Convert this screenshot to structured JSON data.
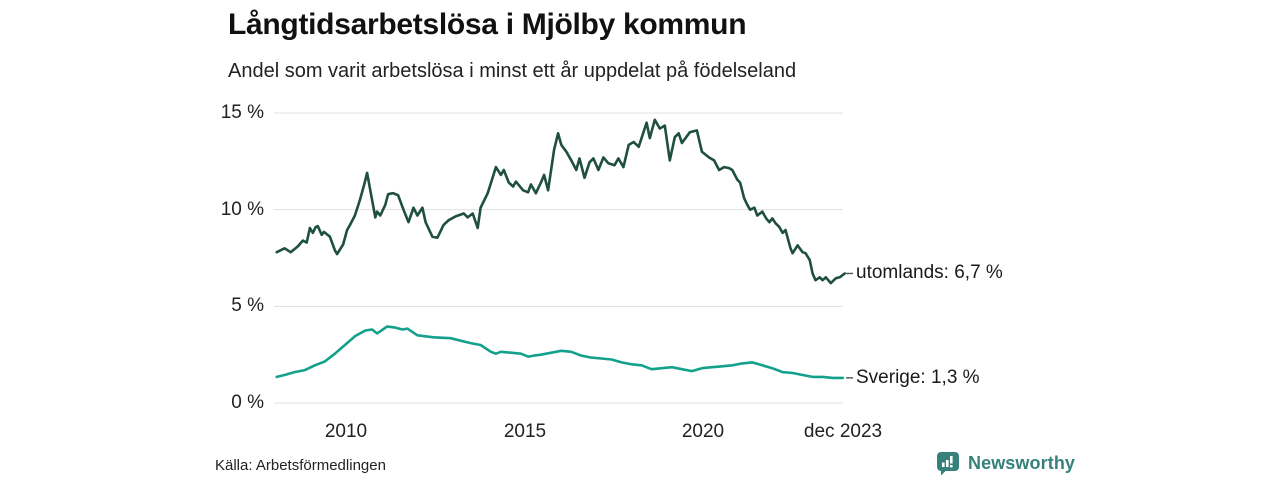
{
  "chart_data": {
    "type": "line",
    "title": "Långtidsarbetslösa i Mjölby kommun",
    "subtitle": "Andel som varit arbetslösa i minst ett år uppdelat på födelseland",
    "source": "Källa: Arbetsförmedlingen",
    "grid": true,
    "legend_position": "labels-at-line-ends",
    "x_axis": {
      "range": [
        2008.0,
        2024.2
      ],
      "ticks": [
        {
          "value": 2010,
          "label": "2010"
        },
        {
          "value": 2015,
          "label": "2015"
        },
        {
          "value": 2020,
          "label": "2020"
        },
        {
          "value": 2023.92,
          "label": "dec 2023"
        }
      ]
    },
    "y_axis": {
      "range": [
        0,
        15
      ],
      "unit": "%",
      "ticks": [
        {
          "value": 15,
          "label": "15 %"
        },
        {
          "value": 10,
          "label": "10 %"
        },
        {
          "value": 5,
          "label": "5 %"
        },
        {
          "value": 0,
          "label": "0 %"
        }
      ]
    },
    "series": [
      {
        "name": "utomlands",
        "end_label": "utomlands: 6,7 %",
        "last_value": 6.7,
        "color": "#1f4f3f",
        "points": [
          [
            2008.06,
            7.8
          ],
          [
            2008.28,
            8.0
          ],
          [
            2008.45,
            7.8
          ],
          [
            2008.65,
            8.1
          ],
          [
            2008.79,
            8.4
          ],
          [
            2008.9,
            8.3
          ],
          [
            2008.99,
            9.05
          ],
          [
            2009.07,
            8.8
          ],
          [
            2009.15,
            9.1
          ],
          [
            2009.21,
            9.15
          ],
          [
            2009.32,
            8.7
          ],
          [
            2009.38,
            8.85
          ],
          [
            2009.55,
            8.6
          ],
          [
            2009.69,
            7.9
          ],
          [
            2009.75,
            7.7
          ],
          [
            2009.92,
            8.2
          ],
          [
            2010.03,
            8.95
          ],
          [
            2010.11,
            9.2
          ],
          [
            2010.25,
            9.7
          ],
          [
            2010.39,
            10.5
          ],
          [
            2010.51,
            11.3
          ],
          [
            2010.59,
            11.9
          ],
          [
            2010.68,
            11.0
          ],
          [
            2010.82,
            9.6
          ],
          [
            2010.87,
            9.9
          ],
          [
            2010.96,
            9.7
          ],
          [
            2011.1,
            10.25
          ],
          [
            2011.18,
            10.8
          ],
          [
            2011.32,
            10.85
          ],
          [
            2011.46,
            10.75
          ],
          [
            2011.61,
            10.0
          ],
          [
            2011.75,
            9.35
          ],
          [
            2011.89,
            10.1
          ],
          [
            2012.0,
            9.7
          ],
          [
            2012.14,
            10.1
          ],
          [
            2012.23,
            9.35
          ],
          [
            2012.42,
            8.6
          ],
          [
            2012.56,
            8.55
          ],
          [
            2012.73,
            9.2
          ],
          [
            2012.87,
            9.45
          ],
          [
            2013.07,
            9.65
          ],
          [
            2013.3,
            9.8
          ],
          [
            2013.41,
            9.6
          ],
          [
            2013.55,
            9.8
          ],
          [
            2013.69,
            9.05
          ],
          [
            2013.77,
            10.1
          ],
          [
            2013.97,
            10.85
          ],
          [
            2014.2,
            12.2
          ],
          [
            2014.34,
            11.8
          ],
          [
            2014.42,
            12.05
          ],
          [
            2014.56,
            11.4
          ],
          [
            2014.68,
            11.2
          ],
          [
            2014.76,
            11.45
          ],
          [
            2014.96,
            11.0
          ],
          [
            2015.1,
            10.9
          ],
          [
            2015.18,
            11.3
          ],
          [
            2015.32,
            10.85
          ],
          [
            2015.46,
            11.4
          ],
          [
            2015.55,
            11.8
          ],
          [
            2015.66,
            11.0
          ],
          [
            2015.83,
            13.1
          ],
          [
            2015.94,
            13.95
          ],
          [
            2016.03,
            13.35
          ],
          [
            2016.17,
            13.0
          ],
          [
            2016.31,
            12.55
          ],
          [
            2016.45,
            12.05
          ],
          [
            2016.54,
            12.65
          ],
          [
            2016.68,
            11.65
          ],
          [
            2016.82,
            12.45
          ],
          [
            2016.93,
            12.65
          ],
          [
            2017.07,
            12.05
          ],
          [
            2017.21,
            12.7
          ],
          [
            2017.35,
            12.4
          ],
          [
            2017.52,
            12.3
          ],
          [
            2017.63,
            12.65
          ],
          [
            2017.77,
            12.2
          ],
          [
            2017.92,
            13.35
          ],
          [
            2018.06,
            13.5
          ],
          [
            2018.2,
            13.25
          ],
          [
            2018.42,
            14.5
          ],
          [
            2018.51,
            13.7
          ],
          [
            2018.65,
            14.65
          ],
          [
            2018.79,
            14.2
          ],
          [
            2018.93,
            14.35
          ],
          [
            2019.07,
            12.55
          ],
          [
            2019.21,
            13.75
          ],
          [
            2019.32,
            13.95
          ],
          [
            2019.41,
            13.45
          ],
          [
            2019.63,
            14.0
          ],
          [
            2019.83,
            14.1
          ],
          [
            2019.97,
            13.0
          ],
          [
            2020.17,
            12.7
          ],
          [
            2020.31,
            12.55
          ],
          [
            2020.45,
            12.05
          ],
          [
            2020.59,
            12.2
          ],
          [
            2020.73,
            12.15
          ],
          [
            2020.82,
            12.05
          ],
          [
            2020.96,
            11.55
          ],
          [
            2021.04,
            11.4
          ],
          [
            2021.15,
            10.6
          ],
          [
            2021.24,
            10.25
          ],
          [
            2021.32,
            10.0
          ],
          [
            2021.44,
            10.1
          ],
          [
            2021.52,
            9.7
          ],
          [
            2021.66,
            9.9
          ],
          [
            2021.77,
            9.55
          ],
          [
            2021.86,
            9.35
          ],
          [
            2021.94,
            9.55
          ],
          [
            2022.03,
            9.3
          ],
          [
            2022.14,
            9.1
          ],
          [
            2022.23,
            8.8
          ],
          [
            2022.31,
            8.95
          ],
          [
            2022.45,
            8.0
          ],
          [
            2022.51,
            7.75
          ],
          [
            2022.65,
            8.15
          ],
          [
            2022.79,
            7.8
          ],
          [
            2022.87,
            7.75
          ],
          [
            2022.99,
            7.4
          ],
          [
            2023.07,
            6.7
          ],
          [
            2023.15,
            6.35
          ],
          [
            2023.27,
            6.5
          ],
          [
            2023.35,
            6.35
          ],
          [
            2023.44,
            6.5
          ],
          [
            2023.58,
            6.2
          ],
          [
            2023.72,
            6.45
          ],
          [
            2023.83,
            6.5
          ],
          [
            2023.97,
            6.7
          ]
        ]
      },
      {
        "name": "Sverige",
        "end_label": "Sverige: 1,3 %",
        "last_value": 1.3,
        "color": "#14a18c",
        "points": [
          [
            2008.06,
            1.35
          ],
          [
            2008.28,
            1.45
          ],
          [
            2008.56,
            1.6
          ],
          [
            2008.85,
            1.7
          ],
          [
            2009.13,
            1.95
          ],
          [
            2009.41,
            2.15
          ],
          [
            2009.69,
            2.55
          ],
          [
            2009.97,
            3.0
          ],
          [
            2010.25,
            3.45
          ],
          [
            2010.54,
            3.75
          ],
          [
            2010.73,
            3.8
          ],
          [
            2010.87,
            3.6
          ],
          [
            2011.15,
            3.95
          ],
          [
            2011.38,
            3.9
          ],
          [
            2011.58,
            3.8
          ],
          [
            2011.72,
            3.85
          ],
          [
            2012.0,
            3.5
          ],
          [
            2012.45,
            3.4
          ],
          [
            2012.93,
            3.35
          ],
          [
            2013.49,
            3.1
          ],
          [
            2013.77,
            3.0
          ],
          [
            2014.06,
            2.65
          ],
          [
            2014.2,
            2.55
          ],
          [
            2014.34,
            2.65
          ],
          [
            2014.62,
            2.6
          ],
          [
            2014.9,
            2.55
          ],
          [
            2015.1,
            2.4
          ],
          [
            2015.27,
            2.45
          ],
          [
            2015.46,
            2.5
          ],
          [
            2015.75,
            2.6
          ],
          [
            2016.03,
            2.7
          ],
          [
            2016.31,
            2.65
          ],
          [
            2016.59,
            2.45
          ],
          [
            2016.87,
            2.35
          ],
          [
            2017.15,
            2.3
          ],
          [
            2017.44,
            2.25
          ],
          [
            2017.72,
            2.1
          ],
          [
            2018.0,
            2.0
          ],
          [
            2018.28,
            1.95
          ],
          [
            2018.56,
            1.75
          ],
          [
            2018.85,
            1.8
          ],
          [
            2019.13,
            1.85
          ],
          [
            2019.41,
            1.75
          ],
          [
            2019.69,
            1.65
          ],
          [
            2019.97,
            1.8
          ],
          [
            2020.25,
            1.85
          ],
          [
            2020.54,
            1.9
          ],
          [
            2020.82,
            1.95
          ],
          [
            2021.1,
            2.05
          ],
          [
            2021.38,
            2.1
          ],
          [
            2021.66,
            1.95
          ],
          [
            2021.94,
            1.8
          ],
          [
            2022.23,
            1.6
          ],
          [
            2022.51,
            1.55
          ],
          [
            2022.79,
            1.45
          ],
          [
            2023.07,
            1.35
          ],
          [
            2023.35,
            1.35
          ],
          [
            2023.63,
            1.3
          ],
          [
            2023.92,
            1.3
          ]
        ]
      }
    ]
  },
  "footer": {
    "brand": "Newsworthy"
  },
  "colors": {
    "gridline": "#e0e0e0",
    "leader_dash": "#555555",
    "brand_teal": "#36827a"
  }
}
